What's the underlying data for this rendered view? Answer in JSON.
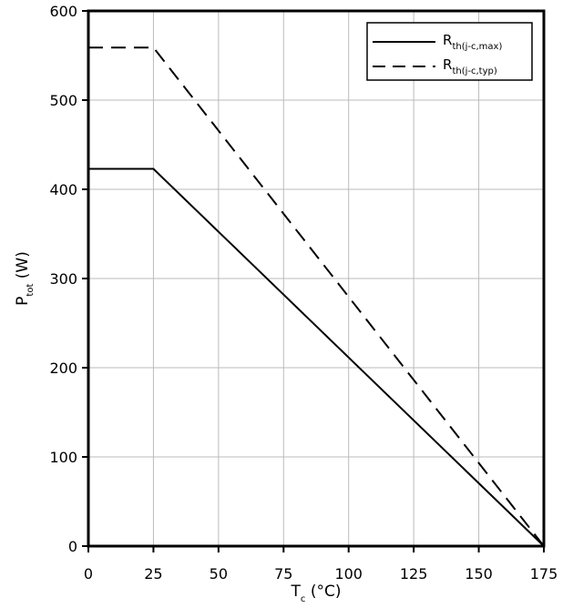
{
  "chart_data": {
    "type": "line",
    "xlabel": {
      "main": "T",
      "sub": "c",
      "rest": " (°C)"
    },
    "ylabel": {
      "main": "P",
      "sub": "tot",
      "rest": " (W)"
    },
    "xlim": [
      0,
      175
    ],
    "ylim": [
      0,
      600
    ],
    "xticks": [
      0,
      25,
      50,
      75,
      100,
      125,
      150,
      175
    ],
    "yticks": [
      0,
      100,
      200,
      300,
      400,
      500,
      600
    ],
    "grid": true,
    "legend_position": "top-right",
    "series": [
      {
        "name": {
          "main": "R",
          "sub": "th(j-c,max)"
        },
        "dash": "solid",
        "x": [
          0,
          25,
          175
        ],
        "y": [
          423,
          423,
          0
        ]
      },
      {
        "name": {
          "main": "R",
          "sub": "th(j-c,typ)"
        },
        "dash": "dashed",
        "x": [
          0,
          25,
          175
        ],
        "y": [
          559,
          559,
          0
        ]
      }
    ]
  }
}
